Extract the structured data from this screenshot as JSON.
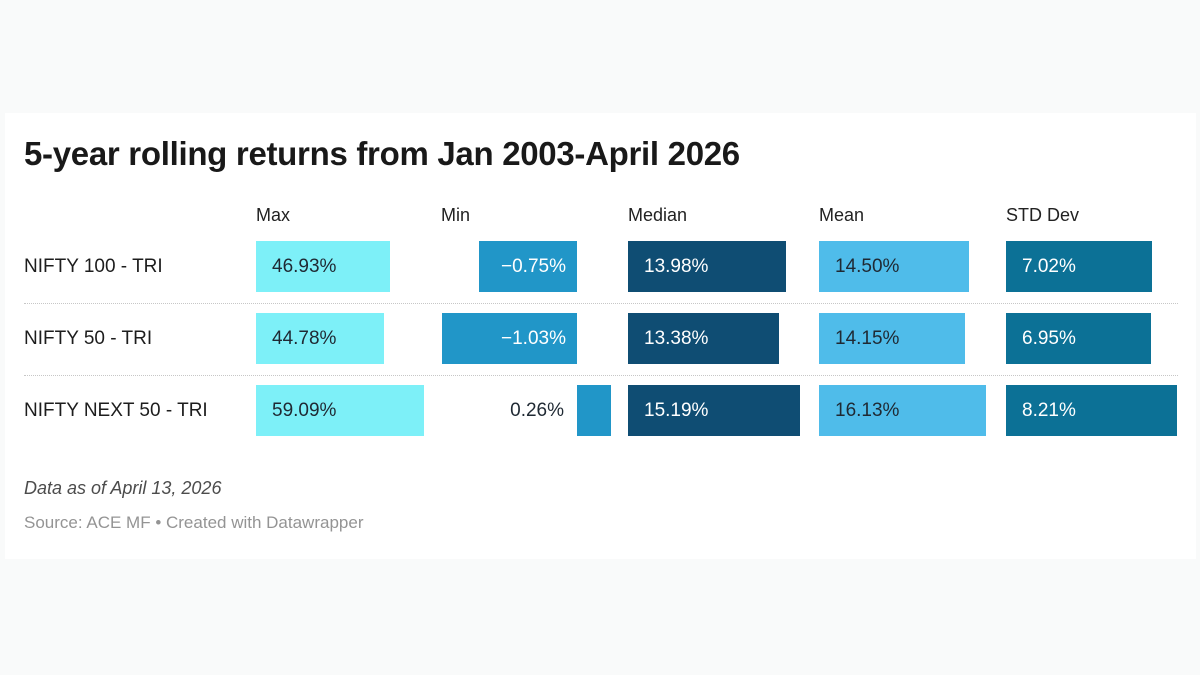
{
  "title": "5-year rolling returns from Jan 2003-April 2026",
  "footnote": "Data as of April 13, 2026",
  "source": "Source: ACE MF • Created with Datawrapper",
  "chart_data": {
    "type": "bar",
    "layout_note": "bar table: one independently-scaled horizontal bar per cell, value label on bar",
    "columns": [
      {
        "key": "max",
        "label": "Max",
        "bar_color": "#7df0f8",
        "text_color": "#1f2933"
      },
      {
        "key": "min",
        "label": "Min",
        "bar_color": "#2196c8",
        "text_color": "#ffffff"
      },
      {
        "key": "median",
        "label": "Median",
        "bar_color": "#0f4d73",
        "text_color": "#ffffff"
      },
      {
        "key": "mean",
        "label": "Mean",
        "bar_color": "#4fbcea",
        "text_color": "#1f2933"
      },
      {
        "key": "std_dev",
        "label": "STD Dev",
        "bar_color": "#0c7196",
        "text_color": "#ffffff"
      }
    ],
    "rows": [
      {
        "label": "NIFTY 100 - TRI",
        "max": 46.93,
        "min": -0.75,
        "median": 13.98,
        "mean": 14.5,
        "std_dev": 7.02,
        "display": {
          "max": "46.93%",
          "min": "−0.75%",
          "median": "13.98%",
          "mean": "14.50%",
          "std_dev": "7.02%"
        }
      },
      {
        "label": "NIFTY 50 - TRI",
        "max": 44.78,
        "min": -1.03,
        "median": 13.38,
        "mean": 14.15,
        "std_dev": 6.95,
        "display": {
          "max": "44.78%",
          "min": "−1.03%",
          "median": "13.38%",
          "mean": "14.15%",
          "std_dev": "6.95%"
        }
      },
      {
        "label": "NIFTY NEXT 50 - TRI",
        "max": 59.09,
        "min": 0.26,
        "median": 15.19,
        "mean": 16.13,
        "std_dev": 8.21,
        "display": {
          "max": "59.09%",
          "min": "0.26%",
          "median": "15.19%",
          "mean": "16.13%",
          "std_dev": "8.21%"
        }
      }
    ]
  }
}
